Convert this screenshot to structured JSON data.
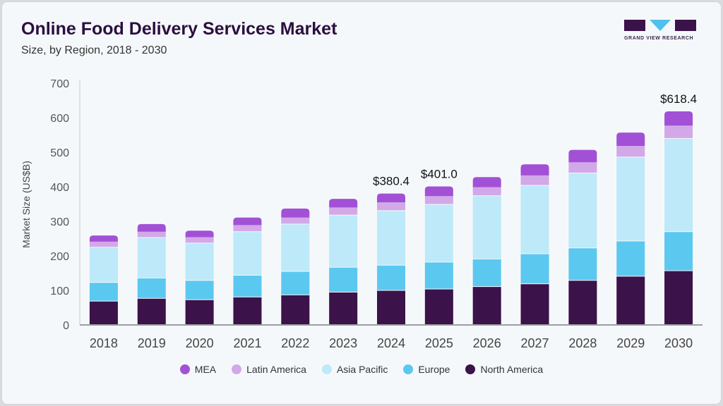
{
  "header": {
    "title": "Online Food Delivery Services Market",
    "subtitle": "Size, by Region, 2018 - 2030"
  },
  "logo": {
    "text": "GRAND VIEW RESEARCH"
  },
  "chart_data": {
    "type": "bar",
    "stacked": true,
    "title": "Online Food Delivery Services Market",
    "subtitle": "Size, by Region, 2018 - 2030",
    "xlabel": "",
    "ylabel": "Market Size (US$B)",
    "ylim": [
      0,
      700
    ],
    "yticks": [
      "0",
      "100",
      "200",
      "300",
      "400",
      "500",
      "600",
      "700"
    ],
    "grid": false,
    "legend_position": "bottom",
    "categories": [
      "2018",
      "2019",
      "2020",
      "2021",
      "2022",
      "2023",
      "2024",
      "2025",
      "2026",
      "2027",
      "2028",
      "2029",
      "2030"
    ],
    "series": [
      {
        "name": "North America",
        "color": "#3b1249",
        "values": [
          68,
          76,
          72,
          80,
          86,
          94,
          99,
          103,
          110,
          118,
          128,
          140,
          156
        ]
      },
      {
        "name": "Europe",
        "color": "#5bc8f0",
        "values": [
          54,
          59,
          56,
          63,
          68,
          72,
          73,
          78,
          80,
          87,
          94,
          102,
          113
        ]
      },
      {
        "name": "Asia Pacific",
        "color": "#bde9f9",
        "values": [
          102,
          117,
          108,
          126,
          137,
          151,
          158,
          167,
          183,
          198,
          217,
          243,
          270
        ]
      },
      {
        "name": "Latin America",
        "color": "#d3a8e8",
        "values": [
          17,
          18,
          18,
          20,
          20,
          23,
          25,
          25,
          26,
          30,
          32,
          33,
          38
        ]
      },
      {
        "name": "MEA",
        "color": "#a251d6",
        "values": [
          18,
          22,
          19,
          22,
          26,
          25,
          25.4,
          28,
          29,
          32,
          36,
          39,
          41.4
        ]
      }
    ],
    "annotations": [
      {
        "category": "2024",
        "text": "$380.4"
      },
      {
        "category": "2025",
        "text": "$401.0"
      },
      {
        "category": "2030",
        "text": "$618.4"
      }
    ],
    "legend_order": [
      "MEA",
      "Latin America",
      "Asia Pacific",
      "Europe",
      "North America"
    ]
  }
}
